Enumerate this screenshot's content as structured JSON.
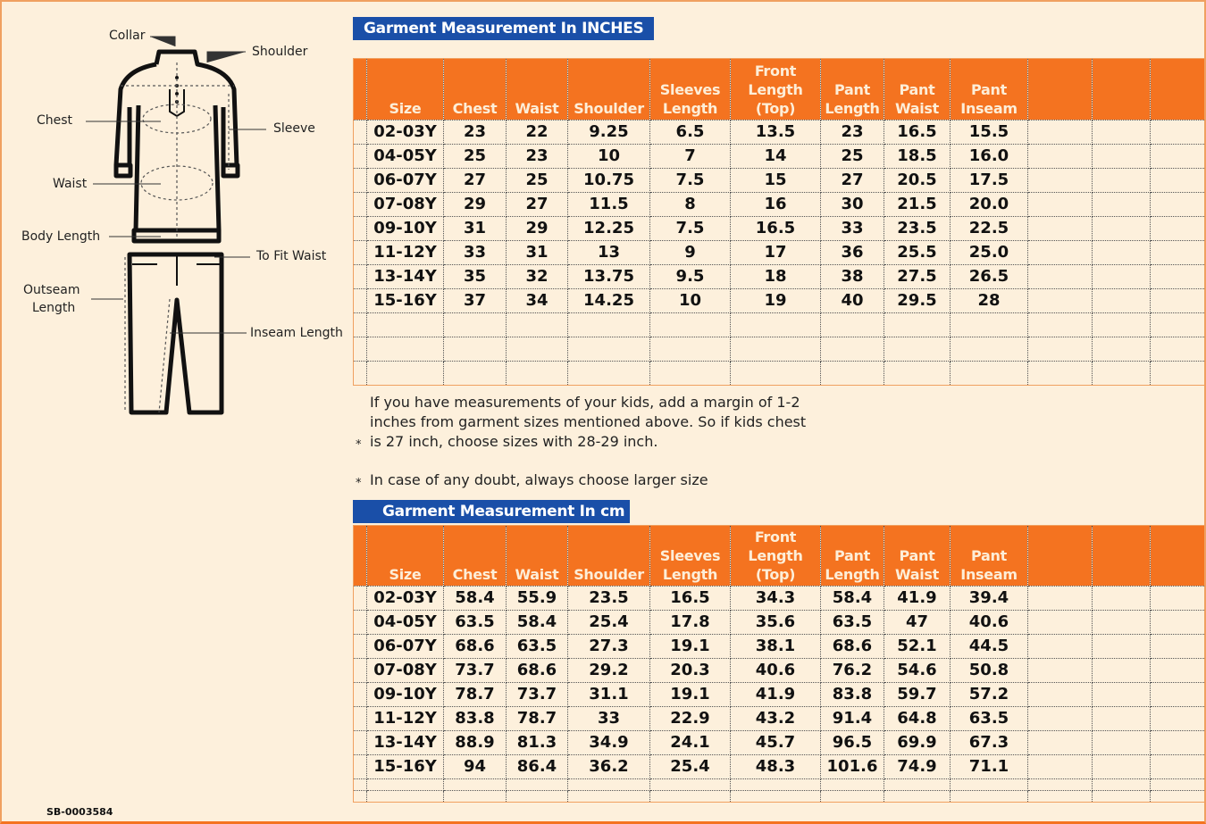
{
  "diagram": {
    "labels": {
      "collar": "Collar",
      "shoulder": "Shoulder",
      "chest": "Chest",
      "sleeve": "Sleeve",
      "waist": "Waist",
      "body_length": "Body Length",
      "to_fit_waist": "To Fit Waist",
      "outseam_line1": "Outseam",
      "outseam_line2": "Length",
      "inseam_length": "Inseam Length"
    }
  },
  "colors": {
    "header_orange": "#f47320",
    "title_blue": "#1a4fa8",
    "background": "#fdf0dc"
  },
  "headers": [
    [
      "",
      "",
      ""
    ],
    [
      "",
      "",
      "Size"
    ],
    [
      "",
      "",
      "Chest"
    ],
    [
      "",
      "",
      "Waist"
    ],
    [
      "",
      "",
      "Shoulder"
    ],
    [
      "",
      "Sleeves",
      "Length"
    ],
    [
      "Front",
      "Length",
      "(Top)"
    ],
    [
      "",
      "Pant",
      "Length"
    ],
    [
      "",
      "Pant",
      "Waist"
    ],
    [
      "",
      "Pant",
      "Inseam"
    ],
    [
      "",
      "",
      ""
    ],
    [
      "",
      "",
      ""
    ],
    [
      "",
      "",
      ""
    ]
  ],
  "inches_table": {
    "title": "Garment Measurement In INCHES",
    "rows": [
      [
        "02-03Y",
        "23",
        "22",
        "9.25",
        "6.5",
        "13.5",
        "23",
        "16.5",
        "15.5"
      ],
      [
        "04-05Y",
        "25",
        "23",
        "10",
        "7",
        "14",
        "25",
        "18.5",
        "16.0"
      ],
      [
        "06-07Y",
        "27",
        "25",
        "10.75",
        "7.5",
        "15",
        "27",
        "20.5",
        "17.5"
      ],
      [
        "07-08Y",
        "29",
        "27",
        "11.5",
        "8",
        "16",
        "30",
        "21.5",
        "20.0"
      ],
      [
        "09-10Y",
        "31",
        "29",
        "12.25",
        "7.5",
        "16.5",
        "33",
        "23.5",
        "22.5"
      ],
      [
        "11-12Y",
        "33",
        "31",
        "13",
        "9",
        "17",
        "36",
        "25.5",
        "25.0"
      ],
      [
        "13-14Y",
        "35",
        "32",
        "13.75",
        "9.5",
        "18",
        "38",
        "27.5",
        "26.5"
      ],
      [
        "15-16Y",
        "37",
        "34",
        "14.25",
        "10",
        "19",
        "40",
        "29.5",
        "28"
      ]
    ]
  },
  "notes": {
    "note1": [
      "If you have measurements of your kids, add a margin of 1-2",
      "inches from garment sizes mentioned above. So if kids chest",
      "is 27 inch, choose sizes with 28-29 inch."
    ],
    "note2": "In case of any doubt, always choose larger size",
    "bullet": "*"
  },
  "cm_table": {
    "title": "Garment Measurement In cm",
    "rows": [
      [
        "02-03Y",
        "58.4",
        "55.9",
        "23.5",
        "16.5",
        "34.3",
        "58.4",
        "41.9",
        "39.4"
      ],
      [
        "04-05Y",
        "63.5",
        "58.4",
        "25.4",
        "17.8",
        "35.6",
        "63.5",
        "47",
        "40.6"
      ],
      [
        "06-07Y",
        "68.6",
        "63.5",
        "27.3",
        "19.1",
        "38.1",
        "68.6",
        "52.1",
        "44.5"
      ],
      [
        "07-08Y",
        "73.7",
        "68.6",
        "29.2",
        "20.3",
        "40.6",
        "76.2",
        "54.6",
        "50.8"
      ],
      [
        "09-10Y",
        "78.7",
        "73.7",
        "31.1",
        "19.1",
        "41.9",
        "83.8",
        "59.7",
        "57.2"
      ],
      [
        "11-12Y",
        "83.8",
        "78.7",
        "33",
        "22.9",
        "43.2",
        "91.4",
        "64.8",
        "63.5"
      ],
      [
        "13-14Y",
        "88.9",
        "81.3",
        "34.9",
        "24.1",
        "45.7",
        "96.5",
        "69.9",
        "67.3"
      ],
      [
        "15-16Y",
        "94",
        "86.4",
        "36.2",
        "25.4",
        "48.3",
        "101.6",
        "74.9",
        "71.1"
      ]
    ]
  },
  "footer": {
    "code": "SB-0003584"
  }
}
